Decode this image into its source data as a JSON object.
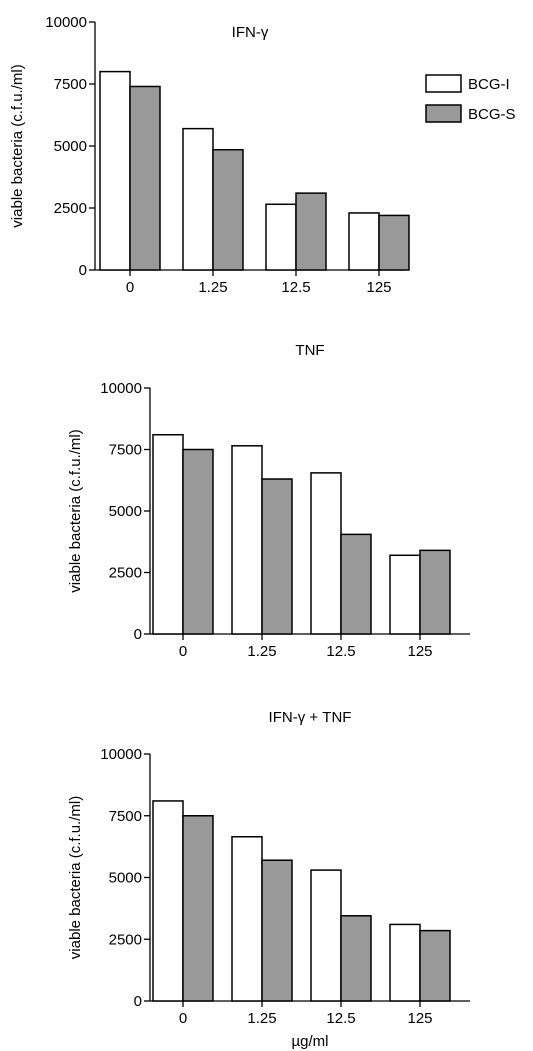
{
  "colors": {
    "bcg_i": "#ffffff",
    "bcg_s": "#999999",
    "stroke": "#000000"
  },
  "legend": [
    {
      "label": "BCG-I",
      "color": "#ffffff"
    },
    {
      "label": "BCG-S",
      "color": "#999999"
    }
  ],
  "chart_data": [
    {
      "type": "bar",
      "title": "IFN-γ",
      "ylabel": "viable bacteria (c.f.u./ml)",
      "xlabel": "",
      "categories": [
        "0",
        "1.25",
        "12.5",
        "125"
      ],
      "ylim": [
        0,
        10000
      ],
      "yticks": [
        "0",
        "2500",
        "5000",
        "7500",
        "10000"
      ],
      "legend_position": "top-right",
      "series": [
        {
          "name": "BCG-I",
          "values": [
            8000,
            5700,
            2650,
            2300
          ]
        },
        {
          "name": "BCG-S",
          "values": [
            7400,
            4850,
            3100,
            2200
          ]
        }
      ]
    },
    {
      "type": "bar",
      "title": "TNF",
      "ylabel": "viable bacteria (c.f.u./ml)",
      "xlabel": "",
      "categories": [
        "0",
        "1.25",
        "12.5",
        "125"
      ],
      "ylim": [
        0,
        10000
      ],
      "yticks": [
        "0",
        "2500",
        "5000",
        "7500",
        "10000"
      ],
      "series": [
        {
          "name": "BCG-I",
          "values": [
            8100,
            7650,
            6550,
            3200
          ]
        },
        {
          "name": "BCG-S",
          "values": [
            7500,
            6300,
            4050,
            3400
          ]
        }
      ]
    },
    {
      "type": "bar",
      "title": "IFN-γ + TNF",
      "ylabel": "viable bacteria (c.f.u./ml)",
      "xlabel": "µg/ml",
      "categories": [
        "0",
        "1.25",
        "12.5",
        "125"
      ],
      "ylim": [
        0,
        10000
      ],
      "yticks": [
        "0",
        "2500",
        "5000",
        "7500",
        "10000"
      ],
      "series": [
        {
          "name": "BCG-I",
          "values": [
            8100,
            6650,
            5300,
            3100
          ]
        },
        {
          "name": "BCG-S",
          "values": [
            7500,
            5700,
            3450,
            2850
          ]
        }
      ]
    }
  ]
}
